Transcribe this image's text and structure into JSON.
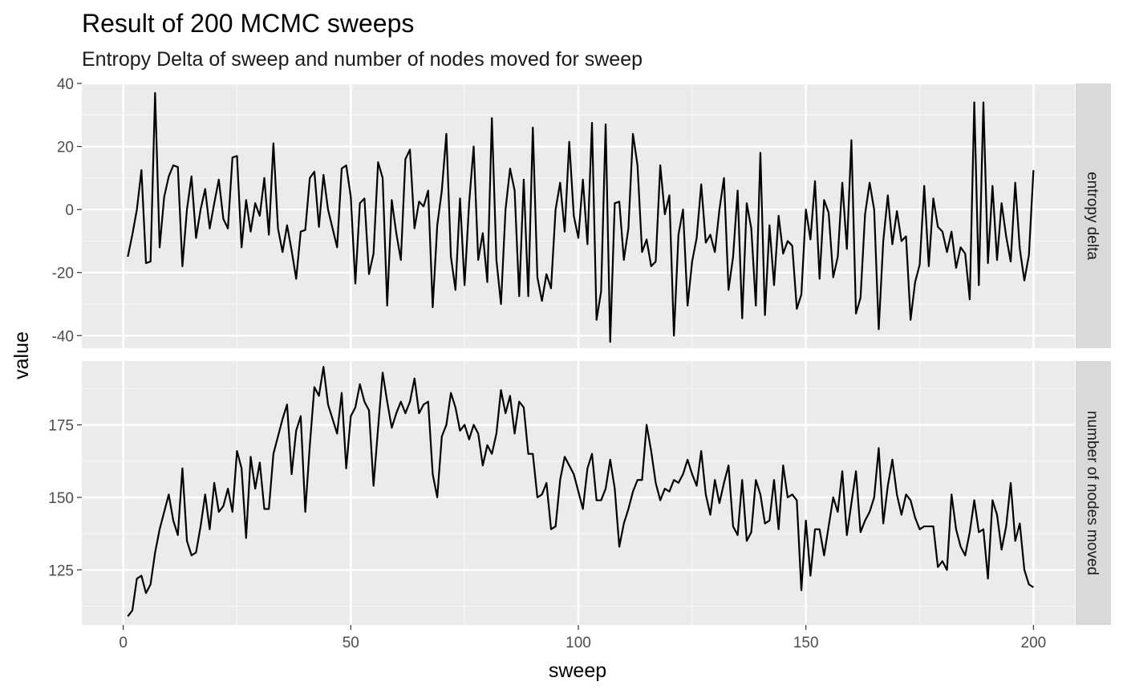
{
  "chart_data": {
    "type": "line",
    "title": "Result of 200 MCMC sweeps",
    "subtitle": "Entropy Delta of sweep and number of nodes moved for sweep",
    "xlabel": "sweep",
    "ylabel": "value",
    "xlim": [
      0,
      200
    ],
    "x_ticks": [
      0,
      50,
      100,
      150,
      200
    ],
    "grid": true,
    "panels": [
      {
        "strip": "entropy delta",
        "ylim": [
          -44,
          40
        ],
        "y_ticks": [
          -40,
          -20,
          0,
          20,
          40
        ],
        "x": [
          1,
          2,
          3,
          4,
          5,
          6,
          7,
          8,
          9,
          10,
          11,
          12,
          13,
          14,
          15,
          16,
          17,
          18,
          19,
          20,
          21,
          22,
          23,
          24,
          25,
          26,
          27,
          28,
          29,
          30,
          31,
          32,
          33,
          34,
          35,
          36,
          37,
          38,
          39,
          40,
          41,
          42,
          43,
          44,
          45,
          46,
          47,
          48,
          49,
          50,
          51,
          52,
          53,
          54,
          55,
          56,
          57,
          58,
          59,
          60,
          61,
          62,
          63,
          64,
          65,
          66,
          67,
          68,
          69,
          70,
          71,
          72,
          73,
          74,
          75,
          76,
          77,
          78,
          79,
          80,
          81,
          82,
          83,
          84,
          85,
          86,
          87,
          88,
          89,
          90,
          91,
          92,
          93,
          94,
          95,
          96,
          97,
          98,
          99,
          100,
          101,
          102,
          103,
          104,
          105,
          106,
          107,
          108,
          109,
          110,
          111,
          112,
          113,
          114,
          115,
          116,
          117,
          118,
          119,
          120,
          121,
          122,
          123,
          124,
          125,
          126,
          127,
          128,
          129,
          130,
          131,
          132,
          133,
          134,
          135,
          136,
          137,
          138,
          139,
          140,
          141,
          142,
          143,
          144,
          145,
          146,
          147,
          148,
          149,
          150,
          151,
          152,
          153,
          154,
          155,
          156,
          157,
          158,
          159,
          160,
          161,
          162,
          163,
          164,
          165,
          166,
          167,
          168,
          169,
          170,
          171,
          172,
          173,
          174,
          175,
          176,
          177,
          178,
          179,
          180,
          181,
          182,
          183,
          184,
          185,
          186,
          187,
          188,
          189,
          190,
          191,
          192,
          193,
          194,
          195,
          196,
          197,
          198,
          199,
          200
        ],
        "values": [
          -15,
          -8,
          0,
          12.5,
          -17,
          -16.5,
          37,
          -12,
          4,
          10.5,
          14,
          13.5,
          -18,
          0,
          10.5,
          -9,
          0,
          6.5,
          -6,
          2,
          9.5,
          -3,
          -6,
          16.5,
          17,
          -12,
          3,
          -7,
          2,
          -2,
          10,
          -8,
          21,
          -6,
          -13.5,
          -5,
          -13,
          -22,
          -7,
          -6.5,
          10,
          12,
          -5.5,
          11,
          0,
          -6,
          -12,
          13,
          14,
          4,
          -23.5,
          2,
          3.5,
          -20.5,
          -14,
          15,
          10,
          -30.5,
          3,
          -7.5,
          -16,
          16,
          19,
          -6,
          2.5,
          1,
          6,
          -31,
          -5,
          6,
          24,
          -15,
          -25.5,
          3.5,
          -24,
          2,
          20,
          -16,
          -7.5,
          -23,
          29,
          -16,
          -30,
          0,
          13,
          6,
          -27.5,
          9.5,
          -27.5,
          26,
          -21.5,
          -29,
          -20.5,
          -25,
          0,
          8.5,
          -7,
          21.5,
          -2,
          -9,
          9.5,
          -11,
          27.5,
          -35,
          -26,
          27,
          -42,
          2,
          2.5,
          -16,
          -6,
          24,
          14,
          -13.5,
          -9.5,
          -18,
          -16.5,
          14,
          -1.5,
          4.5,
          -40,
          -8,
          0,
          -30.5,
          -16.5,
          -9,
          8,
          -10.5,
          -8,
          -13.5,
          0,
          10,
          -25.5,
          -15,
          6,
          -34.5,
          2,
          -6,
          -30.5,
          18,
          -33.5,
          -5,
          -24,
          -2,
          -14,
          -10,
          -11.5,
          -31.5,
          -27,
          0,
          -9.5,
          9,
          -22,
          3,
          -1,
          -21.5,
          -15,
          8.5,
          -12.5,
          22,
          -33,
          -28,
          -1.5,
          8.5,
          0,
          -38,
          -10,
          4.5,
          -11,
          -0.5,
          -10,
          -8.5,
          -35,
          -23,
          -17.5,
          7.5,
          -18,
          3.5,
          -5.5,
          -7,
          -13.5,
          -7,
          -18.5,
          -12,
          -14,
          -28.5,
          34,
          -24,
          34,
          -17,
          7.5,
          -16,
          2,
          -8.5,
          -16.5,
          8.5,
          -12.5,
          -22.5,
          -14.5,
          12.5
        ]
      },
      {
        "strip": "number of nodes moved",
        "ylim": [
          106,
          197
        ],
        "y_ticks": [
          125,
          150,
          175
        ],
        "x": [
          1,
          2,
          3,
          4,
          5,
          6,
          7,
          8,
          9,
          10,
          11,
          12,
          13,
          14,
          15,
          16,
          17,
          18,
          19,
          20,
          21,
          22,
          23,
          24,
          25,
          26,
          27,
          28,
          29,
          30,
          31,
          32,
          33,
          34,
          35,
          36,
          37,
          38,
          39,
          40,
          41,
          42,
          43,
          44,
          45,
          46,
          47,
          48,
          49,
          50,
          51,
          52,
          53,
          54,
          55,
          56,
          57,
          58,
          59,
          60,
          61,
          62,
          63,
          64,
          65,
          66,
          67,
          68,
          69,
          70,
          71,
          72,
          73,
          74,
          75,
          76,
          77,
          78,
          79,
          80,
          81,
          82,
          83,
          84,
          85,
          86,
          87,
          88,
          89,
          90,
          91,
          92,
          93,
          94,
          95,
          96,
          97,
          98,
          99,
          100,
          101,
          102,
          103,
          104,
          105,
          106,
          107,
          108,
          109,
          110,
          111,
          112,
          113,
          114,
          115,
          116,
          117,
          118,
          119,
          120,
          121,
          122,
          123,
          124,
          125,
          126,
          127,
          128,
          129,
          130,
          131,
          132,
          133,
          134,
          135,
          136,
          137,
          138,
          139,
          140,
          141,
          142,
          143,
          144,
          145,
          146,
          147,
          148,
          149,
          150,
          151,
          152,
          153,
          154,
          155,
          156,
          157,
          158,
          159,
          160,
          161,
          162,
          163,
          164,
          165,
          166,
          167,
          168,
          169,
          170,
          171,
          172,
          173,
          174,
          175,
          176,
          177,
          178,
          179,
          180,
          181,
          182,
          183,
          184,
          185,
          186,
          187,
          188,
          189,
          190,
          191,
          192,
          193,
          194,
          195,
          196,
          197,
          198,
          199,
          200
        ],
        "values": [
          109,
          111,
          122,
          123,
          117,
          120,
          131,
          139,
          145,
          151,
          142,
          137,
          160,
          135,
          130,
          131,
          140,
          151,
          139,
          155,
          145,
          147,
          153,
          145,
          166,
          160,
          136,
          164,
          153,
          162,
          146,
          146,
          165,
          171,
          177,
          182,
          158,
          173,
          178,
          145,
          168,
          188,
          185,
          195,
          182,
          177,
          172,
          186,
          160,
          178,
          181,
          189,
          183,
          180,
          154,
          174,
          193,
          183,
          174,
          179,
          183,
          179,
          183,
          191,
          179,
          182,
          183,
          158,
          150,
          171,
          175,
          186,
          181,
          173,
          175,
          170,
          175,
          172,
          161,
          168,
          165,
          172,
          187,
          179,
          185,
          172,
          183,
          181,
          165,
          165,
          150,
          151,
          155,
          139,
          140,
          156,
          164,
          161,
          158,
          152,
          146,
          160,
          165,
          149,
          149,
          153,
          163,
          153,
          133,
          141,
          146,
          152,
          156,
          156,
          175,
          166,
          155,
          149,
          153,
          152,
          156,
          155,
          158,
          163,
          158,
          154,
          166,
          151,
          144,
          156,
          148,
          155,
          161,
          140,
          137,
          156,
          135,
          138,
          156,
          151,
          141,
          142,
          156,
          139,
          161,
          150,
          151,
          149,
          118,
          142,
          123,
          139,
          139,
          130,
          140,
          150,
          145,
          159,
          137,
          148,
          159,
          138,
          142,
          145,
          150,
          167,
          141,
          154,
          163,
          151,
          144,
          151,
          149,
          143,
          139,
          140,
          140,
          140,
          126,
          128,
          125,
          151,
          139,
          133,
          130,
          138,
          149,
          138,
          139,
          122,
          149,
          144,
          132,
          140,
          155,
          135,
          141,
          125,
          120,
          119
        ]
      }
    ]
  },
  "colors": {
    "panel_bg": "#ebebeb",
    "strip_bg": "#d9d9d9",
    "grid_major": "#ffffff",
    "grid_minor": "#f7f7f7",
    "line": "#000000"
  }
}
